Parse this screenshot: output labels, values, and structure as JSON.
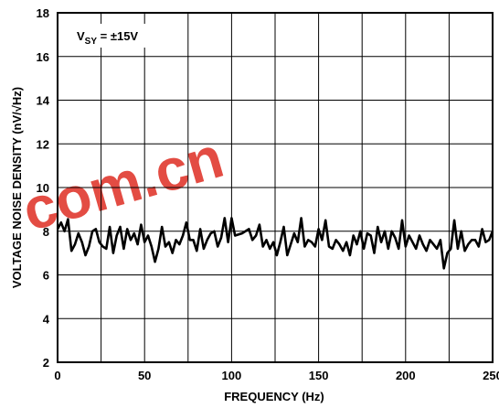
{
  "chart_data": {
    "type": "line",
    "title": "",
    "xlabel": "FREQUENCY (Hz)",
    "ylabel": "VOLTAGE NOISE DENSITY (nV/√Hz)",
    "xlim": [
      0,
      250
    ],
    "ylim": [
      2,
      18
    ],
    "xticks": [
      0,
      50,
      100,
      150,
      200,
      250
    ],
    "yticks": [
      2,
      4,
      6,
      8,
      10,
      12,
      14,
      16,
      18
    ],
    "x_grid_step": 25,
    "grid": true,
    "legend": "none",
    "line_color": "#000000",
    "annotation": {
      "main": "V",
      "sub": "SY",
      "rest": " = ±15V"
    },
    "watermark": "com.cn",
    "watermark_color": "#e0392f",
    "series": [
      {
        "values": [
          [
            0,
            8.1
          ],
          [
            2,
            8.4
          ],
          [
            4,
            8.0
          ],
          [
            6,
            8.55
          ],
          [
            8,
            7.1
          ],
          [
            10,
            7.4
          ],
          [
            12,
            7.9
          ],
          [
            14,
            7.5
          ],
          [
            16,
            6.9
          ],
          [
            18,
            7.3
          ],
          [
            20,
            8.0
          ],
          [
            22,
            8.1
          ],
          [
            24,
            7.5
          ],
          [
            26,
            7.3
          ],
          [
            28,
            7.2
          ],
          [
            30,
            8.2
          ],
          [
            32,
            7.0
          ],
          [
            34,
            7.8
          ],
          [
            36,
            8.2
          ],
          [
            38,
            7.2
          ],
          [
            40,
            8.1
          ],
          [
            42,
            7.6
          ],
          [
            44,
            7.9
          ],
          [
            46,
            7.4
          ],
          [
            48,
            8.3
          ],
          [
            50,
            7.5
          ],
          [
            52,
            7.8
          ],
          [
            54,
            7.3
          ],
          [
            56,
            6.6
          ],
          [
            58,
            7.2
          ],
          [
            60,
            8.2
          ],
          [
            62,
            7.3
          ],
          [
            64,
            7.5
          ],
          [
            66,
            7.0
          ],
          [
            68,
            7.6
          ],
          [
            70,
            7.4
          ],
          [
            72,
            7.8
          ],
          [
            74,
            8.4
          ],
          [
            76,
            7.6
          ],
          [
            78,
            7.6
          ],
          [
            80,
            7.1
          ],
          [
            82,
            8.1
          ],
          [
            84,
            7.2
          ],
          [
            86,
            7.6
          ],
          [
            88,
            7.9
          ],
          [
            90,
            8.0
          ],
          [
            92,
            7.3
          ],
          [
            94,
            7.7
          ],
          [
            96,
            8.6
          ],
          [
            98,
            7.5
          ],
          [
            100,
            8.6
          ],
          [
            102,
            7.8
          ],
          [
            106,
            7.9
          ],
          [
            110,
            8.1
          ],
          [
            112,
            7.6
          ],
          [
            114,
            7.8
          ],
          [
            116,
            8.3
          ],
          [
            118,
            7.3
          ],
          [
            120,
            7.6
          ],
          [
            122,
            7.2
          ],
          [
            124,
            7.5
          ],
          [
            126,
            6.9
          ],
          [
            128,
            7.5
          ],
          [
            130,
            8.2
          ],
          [
            132,
            6.9
          ],
          [
            134,
            7.4
          ],
          [
            136,
            7.9
          ],
          [
            138,
            7.5
          ],
          [
            140,
            8.6
          ],
          [
            142,
            7.3
          ],
          [
            144,
            7.6
          ],
          [
            146,
            7.5
          ],
          [
            148,
            7.3
          ],
          [
            150,
            8.1
          ],
          [
            152,
            7.6
          ],
          [
            154,
            8.5
          ],
          [
            156,
            7.3
          ],
          [
            158,
            7.2
          ],
          [
            160,
            7.6
          ],
          [
            162,
            7.4
          ],
          [
            164,
            7.1
          ],
          [
            166,
            7.5
          ],
          [
            168,
            6.9
          ],
          [
            170,
            7.8
          ],
          [
            172,
            7.4
          ],
          [
            174,
            8.0
          ],
          [
            176,
            7.2
          ],
          [
            178,
            7.9
          ],
          [
            180,
            7.8
          ],
          [
            182,
            7.0
          ],
          [
            184,
            8.2
          ],
          [
            186,
            7.5
          ],
          [
            188,
            8.0
          ],
          [
            190,
            7.2
          ],
          [
            192,
            8.0
          ],
          [
            194,
            7.7
          ],
          [
            196,
            7.2
          ],
          [
            198,
            8.5
          ],
          [
            200,
            7.3
          ],
          [
            202,
            7.8
          ],
          [
            204,
            7.5
          ],
          [
            206,
            7.2
          ],
          [
            208,
            7.8
          ],
          [
            210,
            7.4
          ],
          [
            212,
            7.1
          ],
          [
            214,
            7.6
          ],
          [
            216,
            7.4
          ],
          [
            218,
            7.2
          ],
          [
            220,
            7.6
          ],
          [
            222,
            6.3
          ],
          [
            224,
            7.0
          ],
          [
            226,
            7.2
          ],
          [
            228,
            8.5
          ],
          [
            230,
            7.2
          ],
          [
            232,
            8.0
          ],
          [
            234,
            7.1
          ],
          [
            236,
            7.4
          ],
          [
            238,
            7.6
          ],
          [
            240,
            7.6
          ],
          [
            242,
            7.3
          ],
          [
            244,
            8.1
          ],
          [
            246,
            7.5
          ],
          [
            248,
            7.6
          ],
          [
            250,
            8.0
          ]
        ]
      }
    ]
  }
}
